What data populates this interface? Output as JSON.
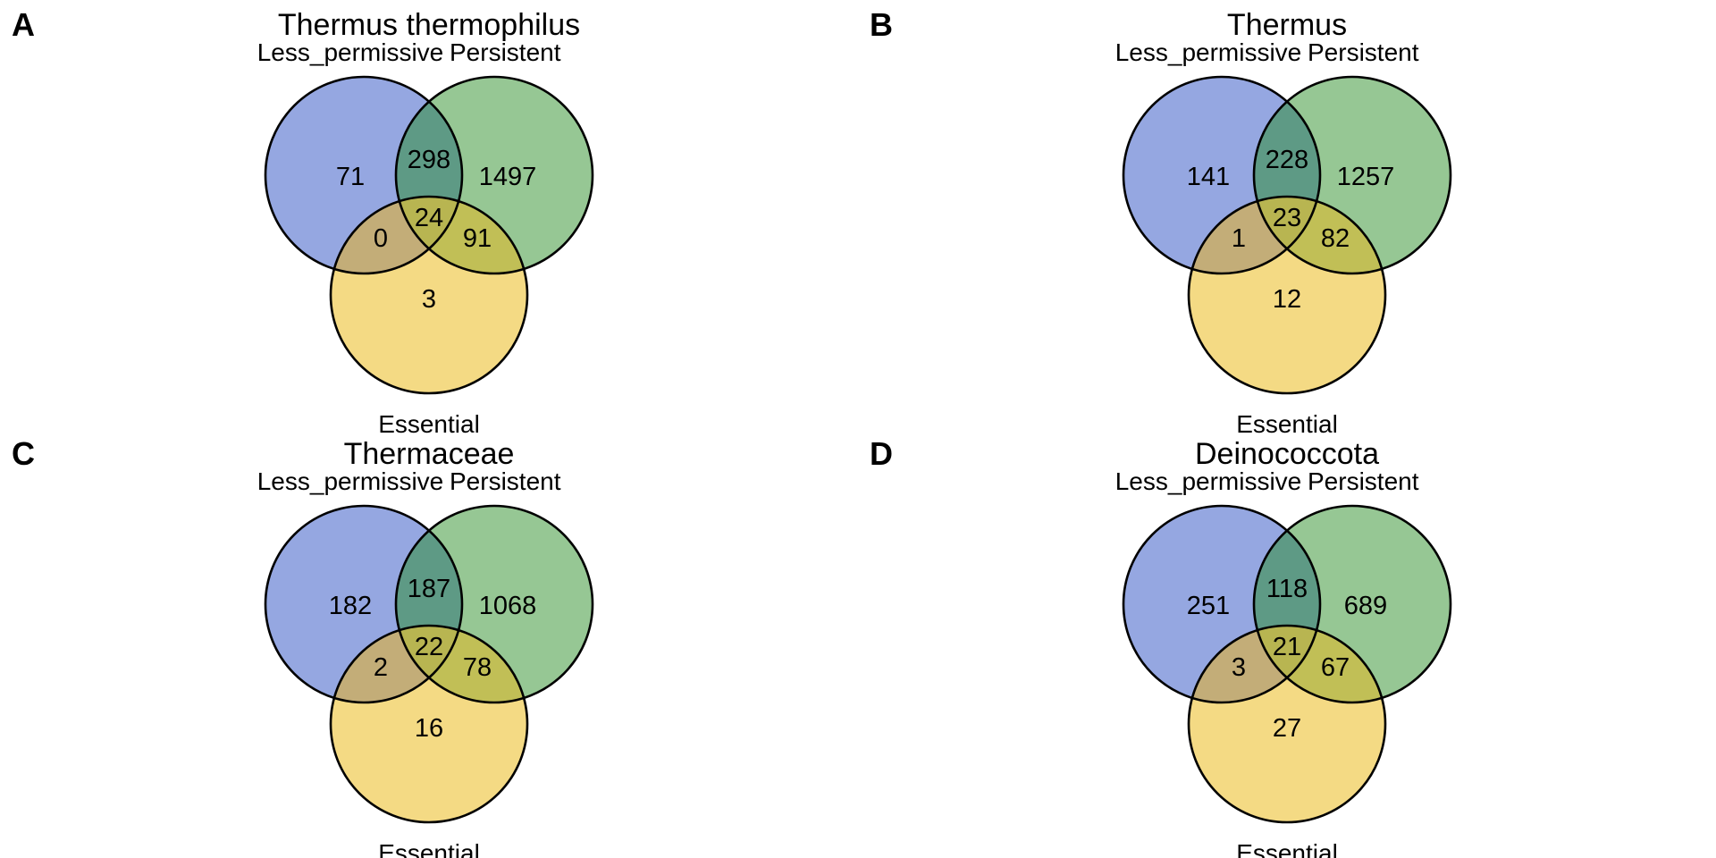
{
  "colors": {
    "less_permissive": "#95a7e1",
    "persistent": "#96c794",
    "essential": "#f4da84",
    "lp_and_persistent": "#5e9a85",
    "lp_and_essential": "#c3ad78",
    "persistent_and_essential": "#c1bf56",
    "all_three": "#b8b551",
    "outline": "#000000"
  },
  "panels": [
    {
      "letter": "A",
      "title": "Thermus thermophilus",
      "labels": {
        "less_permissive": "Less_permissive",
        "persistent": "Persistent",
        "essential": "Essential"
      },
      "counts": {
        "less_permissive_only": "71",
        "persistent_only": "1497",
        "essential_only": "3",
        "lp_persistent": "298",
        "lp_essential": "0",
        "persistent_essential": "91",
        "all_three": "24"
      }
    },
    {
      "letter": "B",
      "title": "Thermus",
      "labels": {
        "less_permissive": "Less_permissive",
        "persistent": "Persistent",
        "essential": "Essential"
      },
      "counts": {
        "less_permissive_only": "141",
        "persistent_only": "1257",
        "essential_only": "12",
        "lp_persistent": "228",
        "lp_essential": "1",
        "persistent_essential": "82",
        "all_three": "23"
      }
    },
    {
      "letter": "C",
      "title": "Thermaceae",
      "labels": {
        "less_permissive": "Less_permissive",
        "persistent": "Persistent",
        "essential": "Essential"
      },
      "counts": {
        "less_permissive_only": "182",
        "persistent_only": "1068",
        "essential_only": "16",
        "lp_persistent": "187",
        "lp_essential": "2",
        "persistent_essential": "78",
        "all_three": "22"
      }
    },
    {
      "letter": "D",
      "title": "Deinococcota",
      "labels": {
        "less_permissive": "Less_permissive",
        "persistent": "Persistent",
        "essential": "Essential"
      },
      "counts": {
        "less_permissive_only": "251",
        "persistent_only": "689",
        "essential_only": "27",
        "lp_persistent": "118",
        "lp_essential": "3",
        "persistent_essential": "67",
        "all_three": "21"
      }
    }
  ]
}
